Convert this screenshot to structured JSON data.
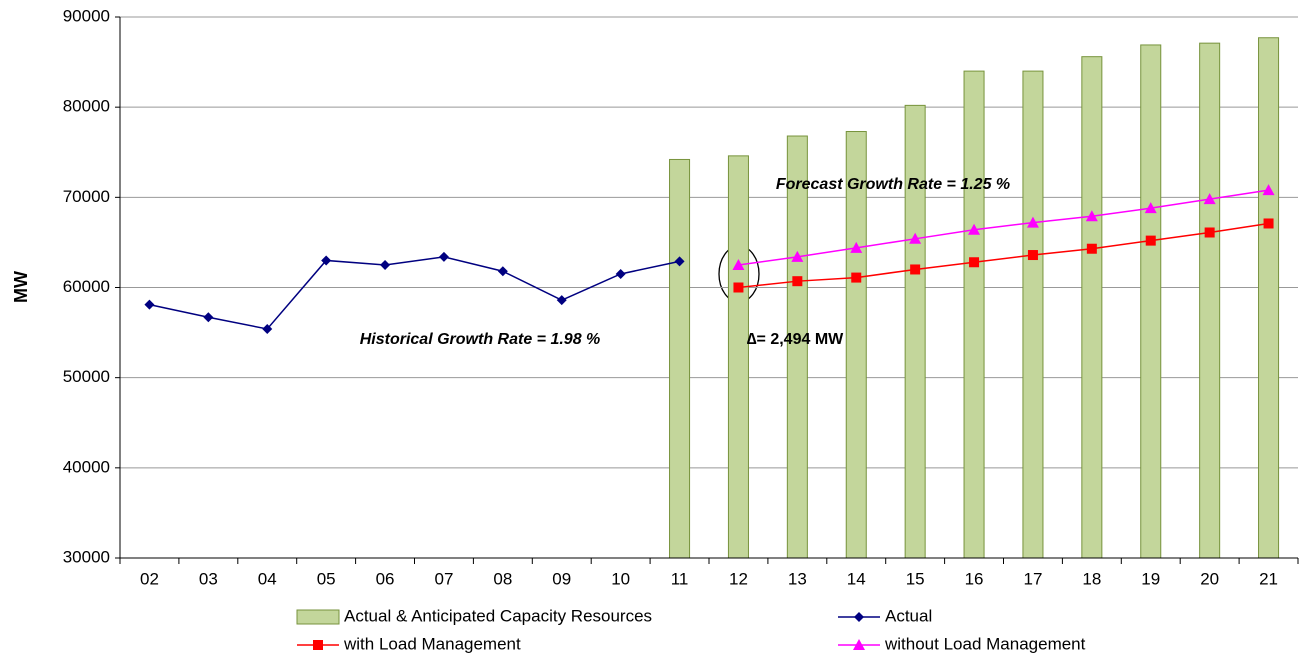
{
  "chart_data": {
    "type": "combo",
    "ylabel": "MW",
    "categories": [
      "02",
      "03",
      "04",
      "05",
      "06",
      "07",
      "08",
      "09",
      "10",
      "11",
      "12",
      "13",
      "14",
      "15",
      "16",
      "17",
      "18",
      "19",
      "20",
      "21"
    ],
    "ylim": [
      30000,
      90000
    ],
    "yticks": [
      30000,
      40000,
      50000,
      60000,
      70000,
      80000,
      90000
    ],
    "grid": true,
    "legend": "bottom",
    "series": [
      {
        "name": "Actual & Anticipated Capacity Resources",
        "type": "bar",
        "color": "#c3d69b",
        "values": [
          null,
          null,
          null,
          null,
          null,
          null,
          null,
          null,
          null,
          74200,
          74600,
          76800,
          77300,
          80200,
          84000,
          84000,
          85600,
          86900,
          87100,
          87700
        ]
      },
      {
        "name": "Actual",
        "type": "line",
        "marker": "diamond",
        "color": "#000080",
        "values": [
          58100,
          56700,
          55400,
          63000,
          62500,
          63400,
          61800,
          58600,
          61500,
          62900,
          null,
          null,
          null,
          null,
          null,
          null,
          null,
          null,
          null,
          null
        ]
      },
      {
        "name": "with Load Management",
        "type": "line",
        "marker": "square",
        "color": "#ff0000",
        "values": [
          null,
          null,
          null,
          null,
          null,
          null,
          null,
          null,
          null,
          null,
          60000,
          60700,
          61100,
          62000,
          62800,
          63600,
          64300,
          65200,
          66100,
          67100
        ]
      },
      {
        "name": "without Load Management",
        "type": "line",
        "marker": "triangle",
        "color": "#ff00ff",
        "values": [
          null,
          null,
          null,
          null,
          null,
          null,
          null,
          null,
          null,
          null,
          62500,
          63400,
          64400,
          65400,
          66400,
          67200,
          67900,
          68800,
          69800,
          70800
        ]
      }
    ],
    "annotations": [
      "Historical Growth Rate = 1.98 %",
      "Forecast Growth Rate = 1.25 %",
      "∆= 2,494 MW"
    ]
  }
}
